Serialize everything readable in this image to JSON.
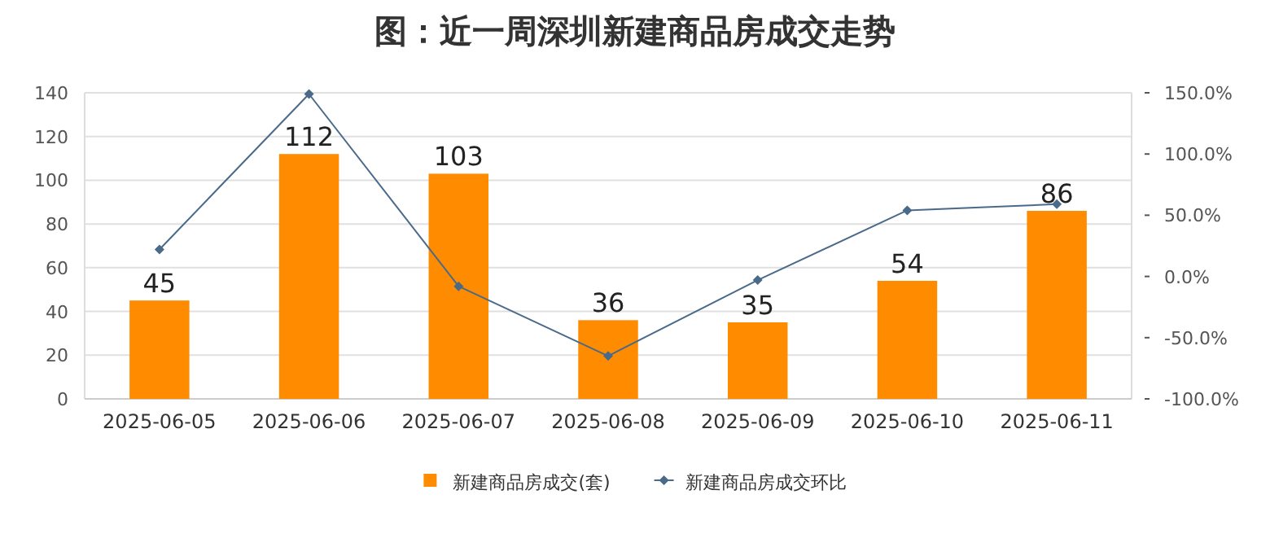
{
  "chart_data": {
    "type": "bar",
    "title": "图：近一周深圳新建商品房成交走势",
    "categories": [
      "2025-06-05",
      "2025-06-06",
      "2025-06-07",
      "2025-06-08",
      "2025-06-09",
      "2025-06-10",
      "2025-06-11"
    ],
    "series": [
      {
        "name": "新建商品房成交(套)",
        "color": "#ff8c00",
        "values": [
          45,
          112,
          103,
          36,
          35,
          54,
          86
        ],
        "value_labels": [
          "45",
          "112",
          "103",
          "36",
          "35",
          "54",
          "86"
        ]
      },
      {
        "name": "新建商品房成交环比",
        "type": "line",
        "axis": "y2",
        "color": "#4a6a8a",
        "marker": "diamond",
        "values": [
          22,
          149,
          -8,
          -65,
          -3,
          54,
          59
        ]
      }
    ],
    "ylim": [
      0,
      140
    ],
    "yticks": [
      0,
      20,
      40,
      60,
      80,
      100,
      120,
      140
    ],
    "y2lim": [
      -100,
      150
    ],
    "y2ticks": [
      {
        "value": -100,
        "label": "-100.0%"
      },
      {
        "value": -50,
        "label": "-50.0%"
      },
      {
        "value": 0,
        "label": "0.0%"
      },
      {
        "value": 50,
        "label": "50.0%"
      },
      {
        "value": 100,
        "label": "100.0%"
      },
      {
        "value": 150,
        "label": "150.0%"
      }
    ],
    "grid": "y",
    "legend": "bottom"
  }
}
